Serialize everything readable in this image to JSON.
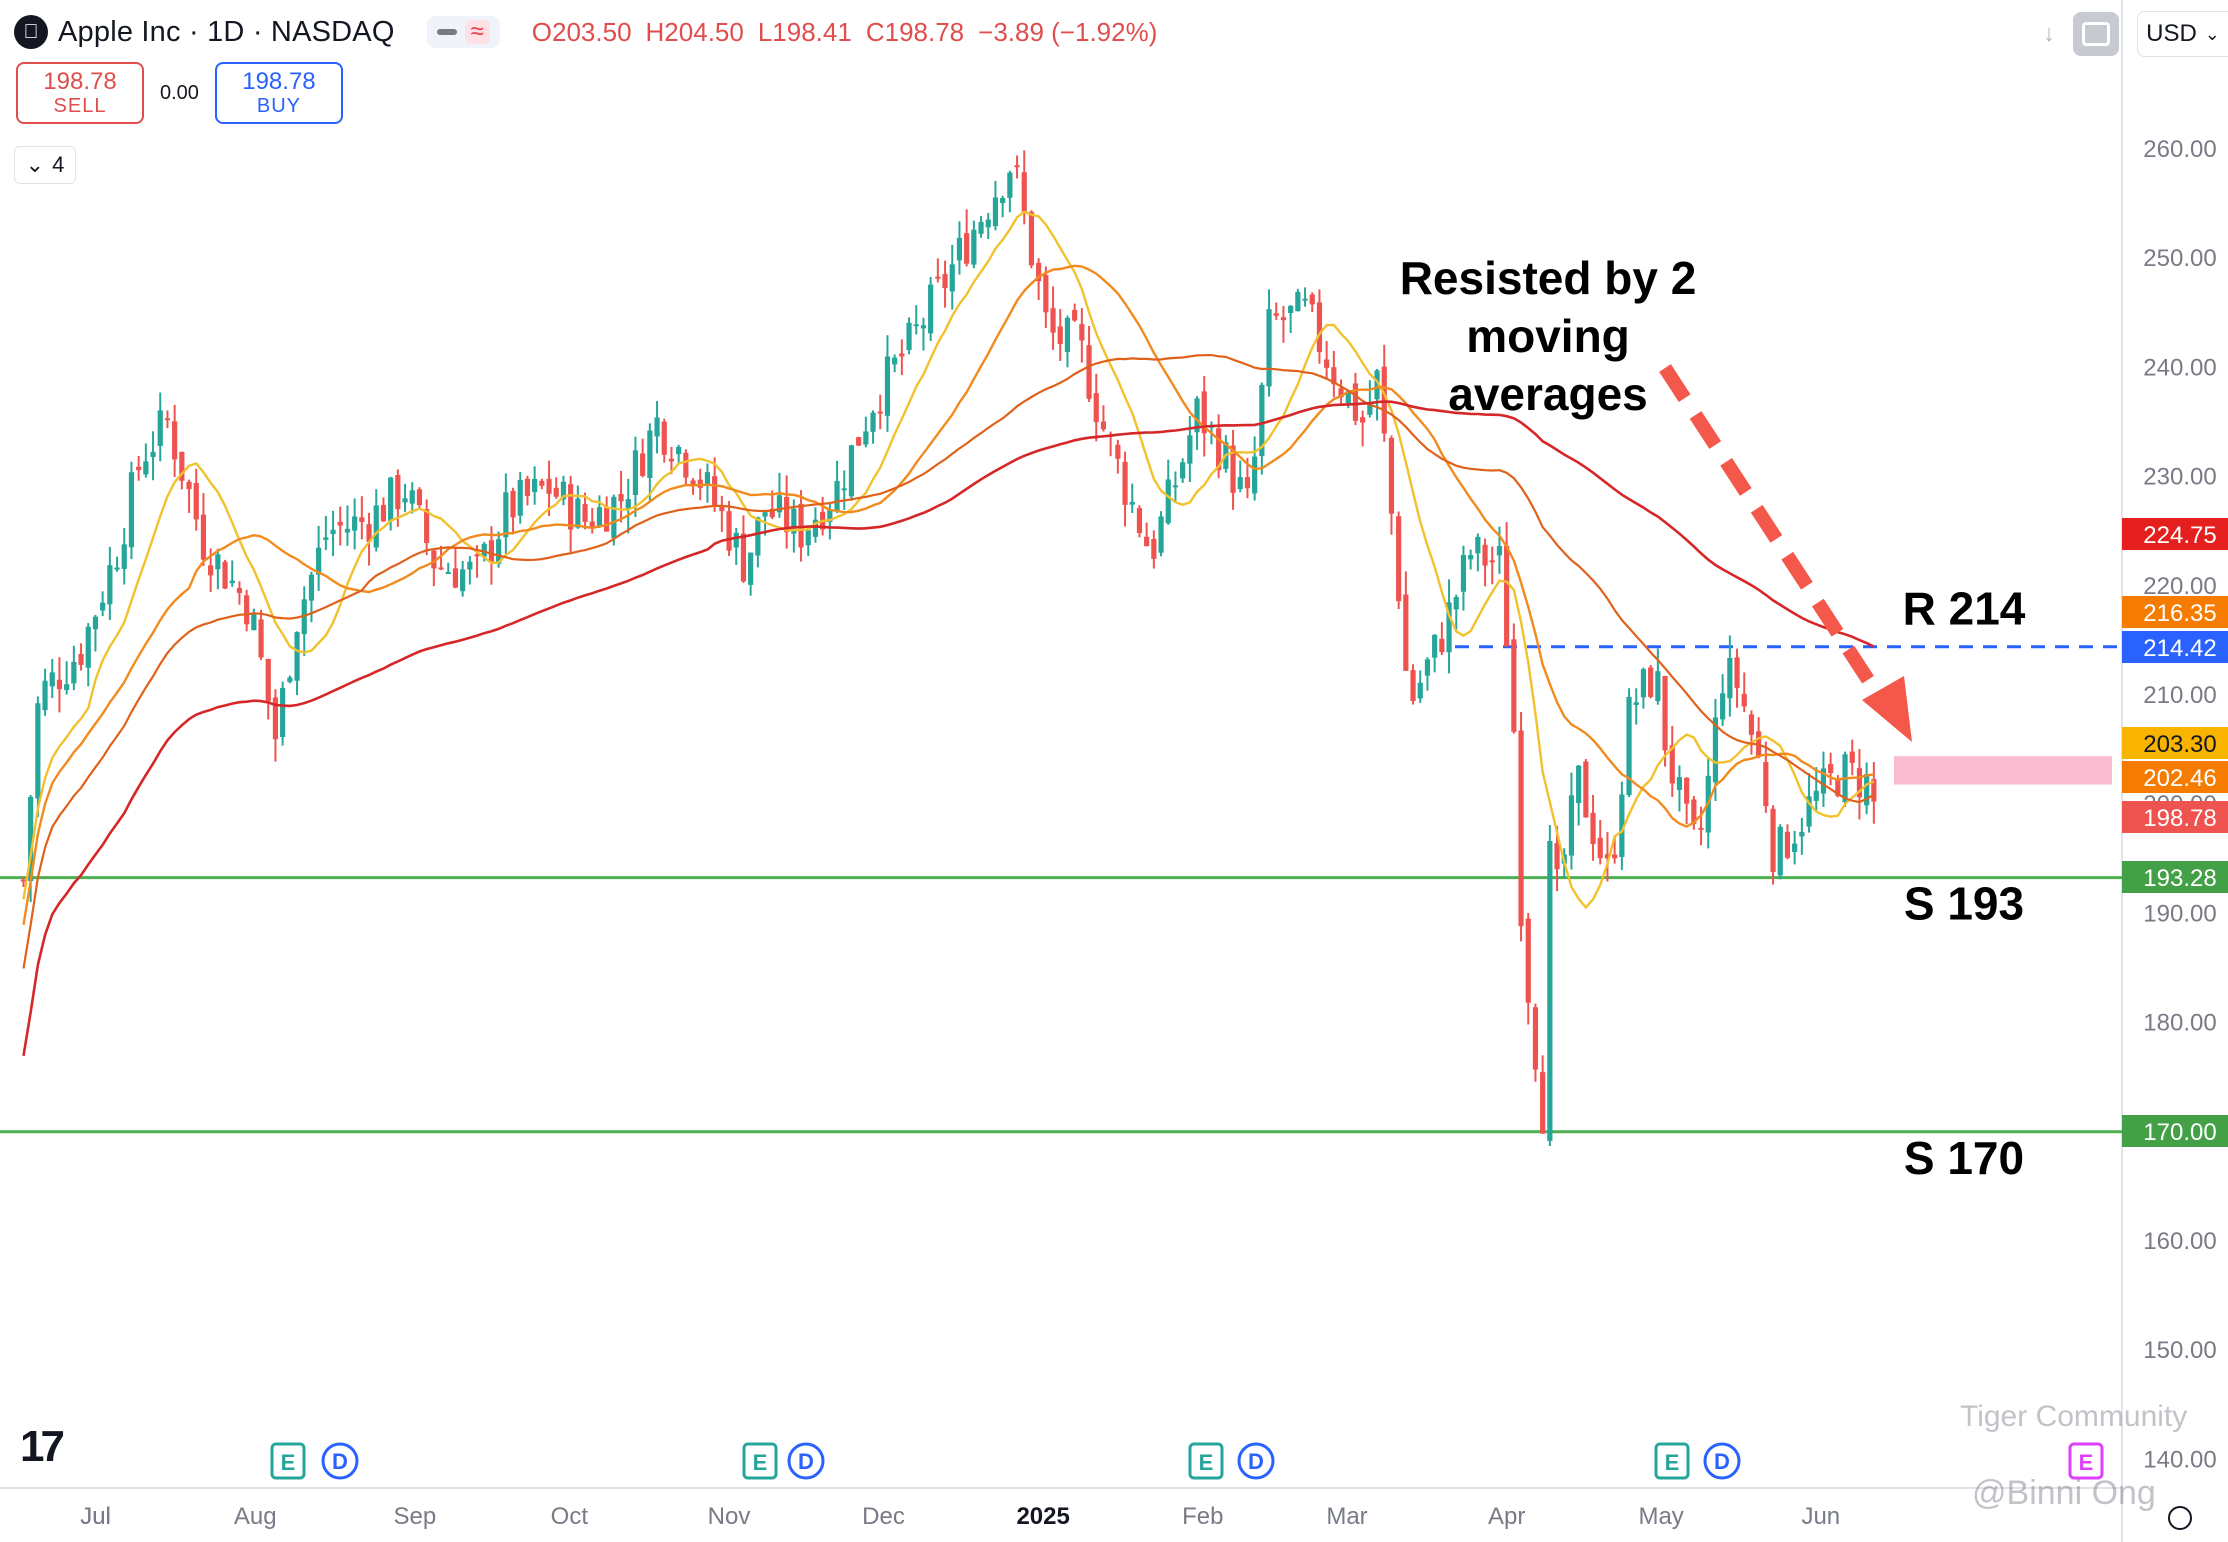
{
  "header": {
    "symbol": "Apple Inc · 1D · NASDAQ",
    "open": "O203.50",
    "high": "H204.50",
    "low": "L198.41",
    "close": "C198.78",
    "change": "−3.89 (−1.92%)"
  },
  "trade": {
    "sell_price": "198.78",
    "sell_label": "SELL",
    "spread": "0.00",
    "buy_price": "198.78",
    "buy_label": "BUY"
  },
  "indicator_toggle": "4",
  "currency": "USD",
  "icons": {
    "logo": "apple-icon",
    "download": "download-icon",
    "screenshot": "fullscreen-icon",
    "dropdown": "chevron-down-icon",
    "collapse": "chevron-down-icon",
    "tradingview": "tradingview-logo",
    "settings": "gear-icon"
  },
  "colors": {
    "up": "#26a69a",
    "down": "#ef5350",
    "ma20": "#f2c12e",
    "ma50": "#f28a1e",
    "ma100": "#e0611a",
    "ma200": "#d62728",
    "support": "#4caf50",
    "resistance": "#2962ff",
    "zone": "#f8bbd0",
    "arrow": "#f4584a"
  },
  "chart_data": {
    "type": "candlestick",
    "title": "Apple Inc · 1D · NASDAQ",
    "x_labels": [
      "Jul",
      "Aug",
      "Sep",
      "Oct",
      "Nov",
      "Dec",
      "2025",
      "Feb",
      "Mar",
      "Apr",
      "May",
      "Jun",
      "Jul"
    ],
    "y_ticks": [
      "260.00",
      "250.00",
      "240.00",
      "230.00",
      "220.00",
      "210.00",
      "200.00",
      "190.00",
      "180.00",
      "170.00",
      "160.00",
      "150.00",
      "140.00"
    ],
    "ylim": [
      138,
      264
    ],
    "close_path": [
      [
        "2024-06-17",
        193
      ],
      [
        "2024-06-20",
        210
      ],
      [
        "2024-06-28",
        214
      ],
      [
        "2024-07-05",
        223
      ],
      [
        "2024-07-10",
        232
      ],
      [
        "2024-07-15",
        235
      ],
      [
        "2024-07-22",
        224
      ],
      [
        "2024-07-31",
        218
      ],
      [
        "2024-08-05",
        206
      ],
      [
        "2024-08-09",
        217
      ],
      [
        "2024-08-15",
        225
      ],
      [
        "2024-08-23",
        226
      ],
      [
        "2024-08-30",
        229
      ],
      [
        "2024-09-05",
        222
      ],
      [
        "2024-09-13",
        221
      ],
      [
        "2024-09-19",
        227
      ],
      [
        "2024-09-27",
        229
      ],
      [
        "2024-10-04",
        226
      ],
      [
        "2024-10-11",
        228
      ],
      [
        "2024-10-18",
        235
      ],
      [
        "2024-10-25",
        231
      ],
      [
        "2024-10-31",
        226
      ],
      [
        "2024-11-04",
        222
      ],
      [
        "2024-11-08",
        227
      ],
      [
        "2024-11-15",
        225
      ],
      [
        "2024-11-22",
        229
      ],
      [
        "2024-11-29",
        237
      ],
      [
        "2024-12-06",
        242
      ],
      [
        "2024-12-13",
        248
      ],
      [
        "2024-12-20",
        254
      ],
      [
        "2024-12-26",
        259
      ],
      [
        "2025-01-02",
        243
      ],
      [
        "2025-01-08",
        242
      ],
      [
        "2025-01-13",
        234
      ],
      [
        "2025-01-17",
        229
      ],
      [
        "2025-01-22",
        223
      ],
      [
        "2025-01-27",
        230
      ],
      [
        "2025-01-31",
        236
      ],
      [
        "2025-02-05",
        232
      ],
      [
        "2025-02-10",
        227
      ],
      [
        "2025-02-14",
        244
      ],
      [
        "2025-02-21",
        245
      ],
      [
        "2025-02-26",
        240
      ],
      [
        "2025-03-04",
        235
      ],
      [
        "2025-03-07",
        239
      ],
      [
        "2025-03-11",
        220
      ],
      [
        "2025-03-13",
        209
      ],
      [
        "2025-03-19",
        215
      ],
      [
        "2025-03-25",
        223
      ],
      [
        "2025-03-31",
        222
      ],
      [
        "2025-04-03",
        203
      ],
      [
        "2025-04-04",
        188
      ],
      [
        "2025-04-08",
        172
      ],
      [
        "2025-04-09",
        198
      ],
      [
        "2025-04-10",
        190
      ],
      [
        "2025-04-15",
        202
      ],
      [
        "2025-04-21",
        193
      ],
      [
        "2025-04-25",
        209
      ],
      [
        "2025-04-30",
        212
      ],
      [
        "2025-05-02",
        205
      ],
      [
        "2025-05-07",
        196
      ],
      [
        "2025-05-09",
        198
      ],
      [
        "2025-05-13",
        212
      ],
      [
        "2025-05-16",
        211
      ],
      [
        "2025-05-21",
        202
      ],
      [
        "2025-05-23",
        195
      ],
      [
        "2025-05-30",
        200
      ],
      [
        "2025-06-05",
        203
      ],
      [
        "2025-06-10",
        202
      ],
      [
        "2025-06-12",
        198.78
      ]
    ],
    "moving_averages": [
      {
        "name": "MA20",
        "last": 203.3
      },
      {
        "name": "MA50",
        "last": 202.46
      },
      {
        "name": "MA100",
        "last": 216.35
      },
      {
        "name": "MA200",
        "last": 224.75
      }
    ],
    "levels": [
      {
        "label": "R 214",
        "value": 214.42,
        "style": "dashed"
      },
      {
        "label": "S 193",
        "value": 193.28,
        "style": "solid"
      },
      {
        "label": "S 170",
        "value": 170.0,
        "style": "solid"
      }
    ],
    "price_badges": [
      "224.75",
      "216.35",
      "214.42",
      "203.30",
      "202.46",
      "198.78",
      "193.28",
      "170.00"
    ],
    "annotation": "Resisted by 2 moving averages",
    "annotation_lines": [
      "Resisted by 2",
      "moving",
      "averages"
    ],
    "event_markers": [
      {
        "month": "Aug",
        "labels": [
          "E",
          "D"
        ]
      },
      {
        "month": "Nov",
        "labels": [
          "E",
          "D"
        ]
      },
      {
        "month": "Feb",
        "labels": [
          "E",
          "D"
        ]
      },
      {
        "month": "May",
        "labels": [
          "E",
          "D"
        ]
      },
      {
        "month": "Jul",
        "labels": [
          "E"
        ]
      }
    ]
  },
  "watermarks": [
    "Tiger Community",
    "@Binni Ong"
  ]
}
